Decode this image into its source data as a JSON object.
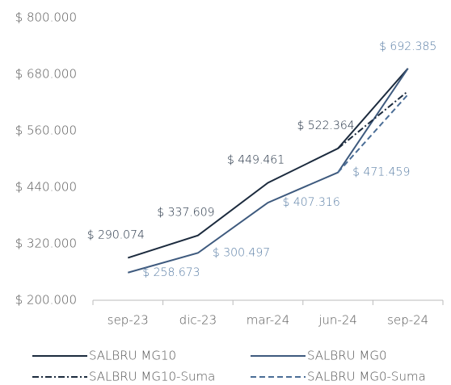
{
  "chart_data": {
    "type": "line",
    "categories": [
      "sep-23",
      "dic-23",
      "mar-24",
      "jun-24",
      "sep-24"
    ],
    "series": [
      {
        "name": "SALBRU MG10",
        "color": "#1c2b3e",
        "dash": "solid",
        "values": [
          290074,
          337609,
          449461,
          522364,
          692385
        ],
        "value_labels": [
          "$ 290.074",
          "$ 337.609",
          "$ 449.461",
          "$ 522.364",
          null
        ],
        "label_color": "#1c2b3e",
        "label_side": "above"
      },
      {
        "name": "SALBRU MG0",
        "color": "#3e5a7e",
        "dash": "solid",
        "values": [
          258673,
          300497,
          407316,
          471459,
          692385
        ],
        "value_labels": [
          "$ 258.673",
          "$ 300.497",
          "$ 407.316",
          "$ 471.459",
          "$ 692.385"
        ],
        "label_color": "#5b7fa6",
        "label_side": "right"
      },
      {
        "name": "SALBRU MG10-Suma",
        "color": "#1c2b3e",
        "dash": "dashdot",
        "values": [
          null,
          null,
          null,
          522364,
          644000
        ]
      },
      {
        "name": "SALBRU MG0-Suma",
        "color": "#4a6d96",
        "dash": "dashed",
        "values": [
          null,
          null,
          null,
          471459,
          637000
        ]
      }
    ],
    "ylim": [
      200000,
      800000
    ],
    "yticks": [
      {
        "value": 200000,
        "label": "$ 200.000"
      },
      {
        "value": 320000,
        "label": "$ 320.000"
      },
      {
        "value": 440000,
        "label": "$ 440.000"
      },
      {
        "value": 560000,
        "label": "$ 560.000"
      },
      {
        "value": 680000,
        "label": "$ 680.000"
      },
      {
        "value": 800000,
        "label": "$ 800.000"
      }
    ],
    "grid": false,
    "legend": "bottom"
  }
}
